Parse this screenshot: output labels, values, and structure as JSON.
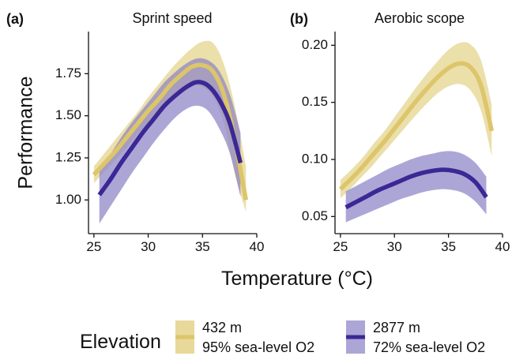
{
  "figure": {
    "ylabel": "Performance",
    "xlabel": "Temperature (°C)",
    "legend": {
      "title": "Elevation",
      "entries": [
        {
          "line1": "432 m",
          "line2": "95% sea-level O2",
          "color": "#ddc56a",
          "fill": "#e8d99b"
        },
        {
          "line1": "2877 m",
          "line2": "72% sea-level O2",
          "color": "#3c2796",
          "fill": "#8c83c6"
        }
      ]
    }
  },
  "chart_data": [
    {
      "type": "line",
      "letter": "(a)",
      "title": "Sprint speed",
      "xlim": [
        24.5,
        40
      ],
      "ylim": [
        0.8,
        2.0
      ],
      "xticks": [
        25,
        30,
        35,
        40
      ],
      "yticks": [
        1.0,
        1.25,
        1.5,
        1.75
      ],
      "ytick_labels": [
        "1.00",
        "1.25",
        "1.50",
        "1.75"
      ],
      "series": [
        {
          "key": "low",
          "x": [
            25,
            26,
            27,
            28,
            29,
            30,
            31,
            32,
            33,
            34,
            35,
            36,
            37,
            38,
            39
          ],
          "y": [
            1.15,
            1.22,
            1.29,
            1.37,
            1.45,
            1.53,
            1.6,
            1.68,
            1.74,
            1.79,
            1.8,
            1.76,
            1.62,
            1.35,
            1.0
          ],
          "lower": [
            1.1,
            1.17,
            1.24,
            1.31,
            1.39,
            1.46,
            1.53,
            1.6,
            1.65,
            1.68,
            1.67,
            1.61,
            1.45,
            1.15,
            0.93
          ],
          "upper": [
            1.2,
            1.28,
            1.36,
            1.44,
            1.52,
            1.61,
            1.69,
            1.77,
            1.84,
            1.9,
            1.94,
            1.93,
            1.8,
            1.55,
            1.2
          ]
        },
        {
          "key": "high",
          "x": [
            25.5,
            26.5,
            27.5,
            28.5,
            29.5,
            30.5,
            31.5,
            32.5,
            33.5,
            34.5,
            35.5,
            36.5,
            37.5,
            38.5
          ],
          "y": [
            1.03,
            1.12,
            1.22,
            1.31,
            1.4,
            1.48,
            1.56,
            1.62,
            1.67,
            1.7,
            1.68,
            1.6,
            1.46,
            1.22
          ],
          "lower": [
            0.86,
            0.96,
            1.06,
            1.16,
            1.25,
            1.34,
            1.42,
            1.49,
            1.54,
            1.56,
            1.53,
            1.43,
            1.28,
            1.02
          ],
          "upper": [
            1.18,
            1.27,
            1.37,
            1.46,
            1.54,
            1.62,
            1.7,
            1.76,
            1.81,
            1.84,
            1.83,
            1.77,
            1.63,
            1.4
          ]
        }
      ]
    },
    {
      "type": "line",
      "letter": "(b)",
      "title": "Aerobic scope",
      "xlim": [
        24.5,
        40
      ],
      "ylim": [
        0.035,
        0.212
      ],
      "xticks": [
        25,
        30,
        35,
        40
      ],
      "yticks": [
        0.05,
        0.1,
        0.15,
        0.2
      ],
      "ytick_labels": [
        "0.05",
        "0.10",
        "0.15",
        "0.20"
      ],
      "series": [
        {
          "key": "low",
          "x": [
            25,
            26,
            27,
            28,
            29,
            30,
            31,
            32,
            33,
            34,
            35,
            36,
            37,
            38,
            39
          ],
          "y": [
            0.074,
            0.083,
            0.093,
            0.104,
            0.115,
            0.127,
            0.139,
            0.151,
            0.162,
            0.172,
            0.18,
            0.184,
            0.181,
            0.165,
            0.125
          ],
          "lower": [
            0.066,
            0.075,
            0.085,
            0.095,
            0.106,
            0.117,
            0.128,
            0.139,
            0.149,
            0.158,
            0.164,
            0.166,
            0.161,
            0.143,
            0.103
          ],
          "upper": [
            0.082,
            0.091,
            0.101,
            0.113,
            0.124,
            0.137,
            0.15,
            0.163,
            0.175,
            0.186,
            0.196,
            0.202,
            0.201,
            0.187,
            0.148
          ]
        },
        {
          "key": "high",
          "x": [
            25.5,
            26.5,
            27.5,
            28.5,
            29.5,
            30.5,
            31.5,
            32.5,
            33.5,
            34.5,
            35.5,
            36.5,
            37.5,
            38.5
          ],
          "y": [
            0.058,
            0.063,
            0.068,
            0.073,
            0.077,
            0.081,
            0.085,
            0.088,
            0.09,
            0.091,
            0.09,
            0.087,
            0.08,
            0.067
          ],
          "lower": [
            0.045,
            0.049,
            0.053,
            0.057,
            0.061,
            0.065,
            0.068,
            0.071,
            0.073,
            0.074,
            0.073,
            0.07,
            0.063,
            0.052
          ],
          "upper": [
            0.072,
            0.077,
            0.082,
            0.087,
            0.092,
            0.096,
            0.1,
            0.103,
            0.105,
            0.107,
            0.107,
            0.104,
            0.097,
            0.085
          ]
        }
      ]
    }
  ]
}
